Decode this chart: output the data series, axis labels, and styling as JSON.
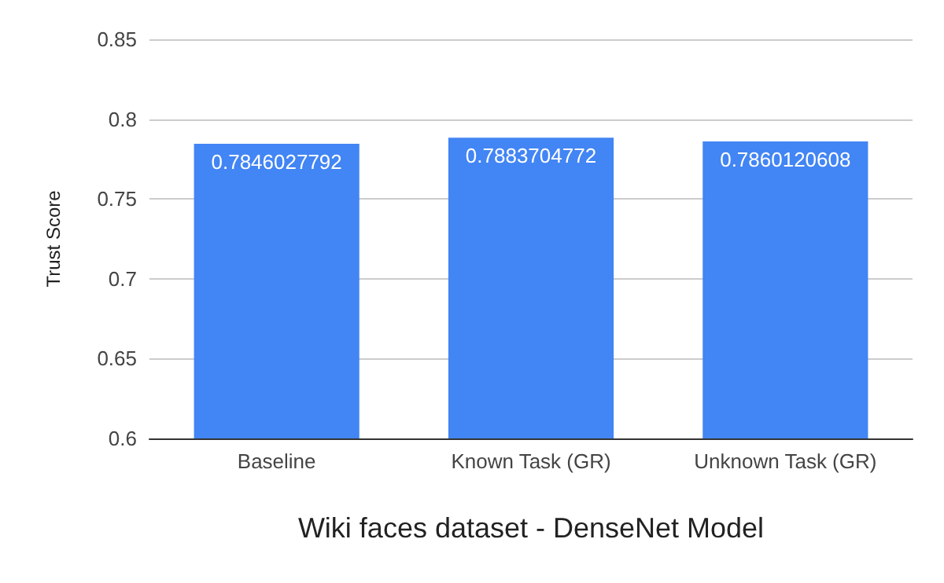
{
  "chart_data": {
    "type": "bar",
    "categories": [
      "Baseline",
      "Known Task (GR)",
      "Unknown Task (GR)"
    ],
    "values": [
      0.7846027792,
      0.7883704772,
      0.7860120608
    ],
    "color": "#4285f4",
    "xlabel": "Wiki faces dataset - DenseNet Model",
    "ylabel": "Trust Score",
    "ylim": [
      0.6,
      0.85
    ],
    "yticks": [
      0.6,
      0.65,
      0.7,
      0.75,
      0.8,
      0.85
    ],
    "grid": "y",
    "data_labels": true
  }
}
